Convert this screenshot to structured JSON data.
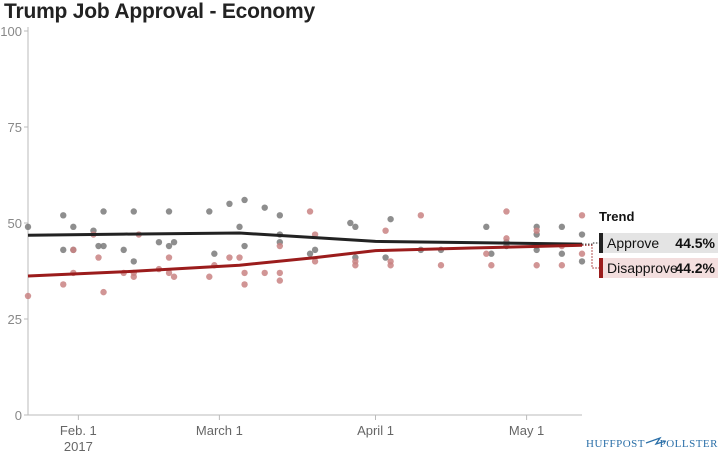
{
  "chart_data": {
    "type": "scatter",
    "title": "Trump Job Approval - Economy",
    "ylim": [
      0,
      100
    ],
    "yticks": [
      0,
      25,
      50,
      75,
      100
    ],
    "xlim": [
      "2017-01-22",
      "2017-05-12"
    ],
    "xticks": [
      {
        "date": "2017-02-01",
        "label": "Feb. 1",
        "sublabel": "2017"
      },
      {
        "date": "2017-03-01",
        "label": "March 1",
        "sublabel": ""
      },
      {
        "date": "2017-04-01",
        "label": "April 1",
        "sublabel": ""
      },
      {
        "date": "2017-05-01",
        "label": "May 1",
        "sublabel": ""
      }
    ],
    "series": [
      {
        "name": "Approve",
        "color": "#222222",
        "point_color": "#7a7a7a",
        "trend": [
          {
            "x": "2017-01-22",
            "y": 46.8
          },
          {
            "x": "2017-02-10",
            "y": 47.1
          },
          {
            "x": "2017-03-05",
            "y": 47.4
          },
          {
            "x": "2017-03-20",
            "y": 46.2
          },
          {
            "x": "2017-04-01",
            "y": 45.2
          },
          {
            "x": "2017-04-20",
            "y": 44.9
          },
          {
            "x": "2017-05-12",
            "y": 44.5
          }
        ],
        "points": [
          {
            "x": "2017-01-22",
            "y": 49
          },
          {
            "x": "2017-01-29",
            "y": 52
          },
          {
            "x": "2017-01-29",
            "y": 43
          },
          {
            "x": "2017-01-31",
            "y": 49
          },
          {
            "x": "2017-01-31",
            "y": 43
          },
          {
            "x": "2017-02-04",
            "y": 48
          },
          {
            "x": "2017-02-05",
            "y": 44
          },
          {
            "x": "2017-02-06",
            "y": 44
          },
          {
            "x": "2017-02-06",
            "y": 53
          },
          {
            "x": "2017-02-10",
            "y": 43
          },
          {
            "x": "2017-02-12",
            "y": 53
          },
          {
            "x": "2017-02-12",
            "y": 40
          },
          {
            "x": "2017-02-17",
            "y": 45
          },
          {
            "x": "2017-02-19",
            "y": 44
          },
          {
            "x": "2017-02-19",
            "y": 53
          },
          {
            "x": "2017-02-20",
            "y": 45
          },
          {
            "x": "2017-02-27",
            "y": 53
          },
          {
            "x": "2017-02-28",
            "y": 42
          },
          {
            "x": "2017-03-03",
            "y": 55
          },
          {
            "x": "2017-03-05",
            "y": 49
          },
          {
            "x": "2017-03-06",
            "y": 56
          },
          {
            "x": "2017-03-06",
            "y": 44
          },
          {
            "x": "2017-03-10",
            "y": 54
          },
          {
            "x": "2017-03-13",
            "y": 52
          },
          {
            "x": "2017-03-13",
            "y": 47
          },
          {
            "x": "2017-03-13",
            "y": 45
          },
          {
            "x": "2017-03-19",
            "y": 42
          },
          {
            "x": "2017-03-20",
            "y": 43
          },
          {
            "x": "2017-03-27",
            "y": 50
          },
          {
            "x": "2017-03-28",
            "y": 49
          },
          {
            "x": "2017-03-28",
            "y": 41
          },
          {
            "x": "2017-04-03",
            "y": 41
          },
          {
            "x": "2017-04-04",
            "y": 51
          },
          {
            "x": "2017-04-10",
            "y": 43
          },
          {
            "x": "2017-04-14",
            "y": 43
          },
          {
            "x": "2017-04-23",
            "y": 49
          },
          {
            "x": "2017-04-24",
            "y": 42
          },
          {
            "x": "2017-04-27",
            "y": 44
          },
          {
            "x": "2017-04-27",
            "y": 45
          },
          {
            "x": "2017-05-03",
            "y": 49
          },
          {
            "x": "2017-05-03",
            "y": 47
          },
          {
            "x": "2017-05-03",
            "y": 44
          },
          {
            "x": "2017-05-03",
            "y": 43
          },
          {
            "x": "2017-05-08",
            "y": 49
          },
          {
            "x": "2017-05-08",
            "y": 42
          },
          {
            "x": "2017-05-12",
            "y": 47
          },
          {
            "x": "2017-05-12",
            "y": 40
          }
        ],
        "latest": "44.5%"
      },
      {
        "name": "Disapprove",
        "color": "#9b1c1c",
        "point_color": "#c98383",
        "trend": [
          {
            "x": "2017-01-22",
            "y": 36.2
          },
          {
            "x": "2017-02-10",
            "y": 37.3
          },
          {
            "x": "2017-03-05",
            "y": 39.0
          },
          {
            "x": "2017-03-20",
            "y": 41.0
          },
          {
            "x": "2017-04-01",
            "y": 42.8
          },
          {
            "x": "2017-04-20",
            "y": 43.5
          },
          {
            "x": "2017-05-12",
            "y": 44.2
          }
        ],
        "points": [
          {
            "x": "2017-01-22",
            "y": 31
          },
          {
            "x": "2017-01-29",
            "y": 34
          },
          {
            "x": "2017-01-31",
            "y": 43
          },
          {
            "x": "2017-01-31",
            "y": 37
          },
          {
            "x": "2017-02-04",
            "y": 47
          },
          {
            "x": "2017-02-05",
            "y": 41
          },
          {
            "x": "2017-02-06",
            "y": 32
          },
          {
            "x": "2017-02-10",
            "y": 37
          },
          {
            "x": "2017-02-12",
            "y": 37
          },
          {
            "x": "2017-02-12",
            "y": 36
          },
          {
            "x": "2017-02-13",
            "y": 47
          },
          {
            "x": "2017-02-17",
            "y": 38
          },
          {
            "x": "2017-02-19",
            "y": 37
          },
          {
            "x": "2017-02-19",
            "y": 41
          },
          {
            "x": "2017-02-20",
            "y": 36
          },
          {
            "x": "2017-02-27",
            "y": 36
          },
          {
            "x": "2017-02-28",
            "y": 39
          },
          {
            "x": "2017-03-03",
            "y": 41
          },
          {
            "x": "2017-03-05",
            "y": 41
          },
          {
            "x": "2017-03-06",
            "y": 34
          },
          {
            "x": "2017-03-06",
            "y": 37
          },
          {
            "x": "2017-03-10",
            "y": 37
          },
          {
            "x": "2017-03-13",
            "y": 37
          },
          {
            "x": "2017-03-13",
            "y": 35
          },
          {
            "x": "2017-03-13",
            "y": 44
          },
          {
            "x": "2017-03-19",
            "y": 53
          },
          {
            "x": "2017-03-20",
            "y": 40
          },
          {
            "x": "2017-03-20",
            "y": 47
          },
          {
            "x": "2017-03-28",
            "y": 40
          },
          {
            "x": "2017-03-28",
            "y": 39
          },
          {
            "x": "2017-04-03",
            "y": 48
          },
          {
            "x": "2017-04-04",
            "y": 39
          },
          {
            "x": "2017-04-04",
            "y": 40
          },
          {
            "x": "2017-04-10",
            "y": 52
          },
          {
            "x": "2017-04-14",
            "y": 39
          },
          {
            "x": "2017-04-23",
            "y": 42
          },
          {
            "x": "2017-04-24",
            "y": 39
          },
          {
            "x": "2017-04-27",
            "y": 53
          },
          {
            "x": "2017-04-27",
            "y": 46
          },
          {
            "x": "2017-05-03",
            "y": 48
          },
          {
            "x": "2017-05-03",
            "y": 39
          },
          {
            "x": "2017-05-08",
            "y": 39
          },
          {
            "x": "2017-05-08",
            "y": 44
          },
          {
            "x": "2017-05-12",
            "y": 52
          },
          {
            "x": "2017-05-12",
            "y": 42
          }
        ],
        "latest": "44.2%"
      }
    ],
    "legend": {
      "title": "Trend",
      "position": "right"
    },
    "grid": false
  },
  "brand": {
    "left": "HUFFPOST",
    "right": "POLLSTER",
    "color": "#2a6fa8"
  }
}
